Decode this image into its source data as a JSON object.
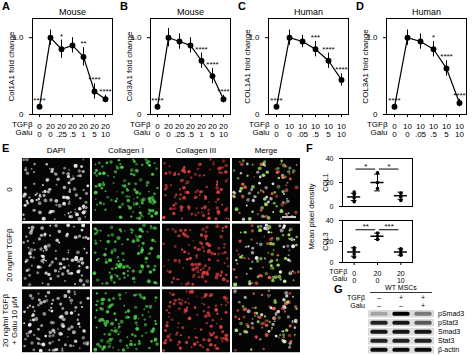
{
  "chart_data": [
    {
      "panel": "A",
      "type": "line",
      "title": "Mouse",
      "ylabel": "Col1A1 fold change",
      "x_rows": [
        {
          "label": "TGFβ",
          "categories": [
            "0",
            "20",
            "20",
            "20",
            "20",
            "20",
            "20"
          ]
        },
        {
          "label": "Galu",
          "categories": [
            "0",
            "0",
            ".25",
            ".5",
            "1",
            "5",
            "10"
          ]
        }
      ],
      "values": [
        0.1,
        1.0,
        0.85,
        0.9,
        0.75,
        0.3,
        0.2
      ],
      "errors": [
        0.03,
        0.1,
        0.12,
        0.1,
        0.12,
        0.1,
        0.05
      ],
      "annotations": [
        "****",
        null,
        "*",
        null,
        "**",
        "****",
        "****"
      ],
      "ylim": [
        0,
        1.25
      ],
      "yticks": [
        0,
        {
          "value": 1,
          "label": "1.0"
        }
      ],
      "color": "#000000",
      "marker": "circle"
    },
    {
      "panel": "B",
      "type": "line",
      "title": "Mouse",
      "ylabel": "Col3A1 fold change",
      "x_rows": [
        {
          "label": "TGFβ",
          "categories": [
            "0",
            "20",
            "20",
            "20",
            "20",
            "20",
            "20"
          ]
        },
        {
          "label": "Galu",
          "categories": [
            "0",
            "0",
            ".25",
            ".5",
            "1",
            "5",
            "10"
          ]
        }
      ],
      "values": [
        0.1,
        1.0,
        0.95,
        0.9,
        0.7,
        0.5,
        0.2
      ],
      "errors": [
        0.03,
        0.12,
        0.1,
        0.1,
        0.1,
        0.1,
        0.05
      ],
      "annotations": [
        "****",
        null,
        null,
        null,
        "****",
        "****",
        "****"
      ],
      "ylim": [
        0,
        1.25
      ],
      "yticks": [
        0,
        {
          "value": 1,
          "label": "1.0"
        }
      ],
      "color": "#000000",
      "marker": "circle"
    },
    {
      "panel": "C",
      "type": "line",
      "title": "Human",
      "ylabel": "COL1A1 fold change",
      "x_rows": [
        {
          "label": "TGFβ",
          "categories": [
            "0",
            "10",
            "10",
            "10",
            "10",
            "10"
          ]
        },
        {
          "label": "Galu",
          "categories": [
            "0",
            "0",
            ".05",
            ".5",
            "5",
            "10"
          ]
        }
      ],
      "values": [
        0.1,
        1.0,
        0.95,
        0.85,
        0.7,
        0.45
      ],
      "errors": [
        0.03,
        0.1,
        0.08,
        0.1,
        0.1,
        0.08
      ],
      "annotations": [
        "****",
        null,
        null,
        "***",
        "****",
        "****"
      ],
      "ylim": [
        0,
        1.25
      ],
      "yticks": [
        0,
        {
          "value": 1,
          "label": "1.0"
        }
      ],
      "color": "#000000",
      "marker": "circle"
    },
    {
      "panel": "D",
      "type": "line",
      "title": "Human",
      "ylabel": "COL3A1 fold change",
      "x_rows": [
        {
          "label": "TGFβ",
          "categories": [
            "0",
            "10",
            "10",
            "10",
            "10",
            "10"
          ]
        },
        {
          "label": "Galu",
          "categories": [
            "0",
            "0",
            ".05",
            ".5",
            "5",
            "10"
          ]
        }
      ],
      "values": [
        0.1,
        1.0,
        0.95,
        0.85,
        0.6,
        0.15
      ],
      "errors": [
        0.03,
        0.1,
        0.1,
        0.1,
        0.1,
        0.05
      ],
      "annotations": [
        "****",
        null,
        null,
        "*",
        "****",
        "****"
      ],
      "ylim": [
        0,
        1.25
      ],
      "yticks": [
        0,
        {
          "value": 1,
          "label": "1.0"
        }
      ],
      "color": "#000000",
      "marker": "circle"
    },
    {
      "panel": "F",
      "type": "scatter",
      "ylabel": "Mean pixel density",
      "color": "#000000",
      "x_rows": [
        {
          "label": "TGFβ",
          "categories": [
            "0",
            "20",
            "20"
          ]
        },
        {
          "label": "Galu",
          "categories": [
            "0",
            "0",
            "10"
          ]
        }
      ],
      "subplots": [
        {
          "ylabel": "COL1",
          "ylim": [
            0,
            40
          ],
          "yticks": [
            0,
            20,
            40
          ],
          "groups": [
            {
              "points": [
                4,
                7,
                10,
                12
              ],
              "mean": 8,
              "error": 3
            },
            {
              "points": [
                15,
                20,
                28
              ],
              "mean": 20,
              "error": 7
            },
            {
              "points": [
                5,
                8,
                11
              ],
              "mean": 9,
              "error": 3
            }
          ],
          "brackets": [
            {
              "from": 0,
              "to": 1,
              "label": "*"
            },
            {
              "from": 1,
              "to": 2,
              "label": "*"
            }
          ]
        },
        {
          "ylabel": "COL3",
          "ylim": [
            0,
            40
          ],
          "yticks": [
            0,
            20,
            40
          ],
          "groups": [
            {
              "points": [
                5,
                8,
                12,
                14
              ],
              "mean": 10,
              "error": 4
            },
            {
              "points": [
                22,
                25,
                28
              ],
              "mean": 25,
              "error": 3
            },
            {
              "points": [
                7,
                9,
                12,
                13
              ],
              "mean": 10,
              "error": 3
            }
          ],
          "brackets": [
            {
              "from": 0,
              "to": 1,
              "label": "**"
            },
            {
              "from": 1,
              "to": 2,
              "label": "***"
            }
          ]
        }
      ]
    }
  ],
  "images": {
    "panel": "E",
    "columns": [
      "DAPI",
      "Collagen I",
      "Collagen III",
      "Merge"
    ],
    "rows": [
      [
        "0"
      ],
      [
        "20 ng/ml TGFβ"
      ],
      [
        "20 ng/ml TGFβ",
        "+ Galu 10 μM"
      ]
    ]
  },
  "blot": {
    "panel": "G",
    "header": "WT MSCs",
    "lanes": [
      {
        "label": "TGFβ",
        "values": [
          "–",
          "+",
          "+"
        ]
      },
      {
        "label": "Galu",
        "values": [
          "–",
          "–",
          "+"
        ]
      }
    ],
    "bands": [
      {
        "name": "pSmad3",
        "intensity": [
          0.25,
          1,
          0.45
        ]
      },
      {
        "name": "pStat3",
        "intensity": [
          0.85,
          0.9,
          0.6
        ]
      },
      {
        "name": "Smad3",
        "intensity": [
          0.9,
          0.9,
          0.9
        ]
      },
      {
        "name": "Stat3",
        "intensity": [
          0.85,
          0.85,
          0.85
        ]
      },
      {
        "name": "β-actin",
        "intensity": [
          0.95,
          0.95,
          0.95
        ]
      }
    ]
  }
}
